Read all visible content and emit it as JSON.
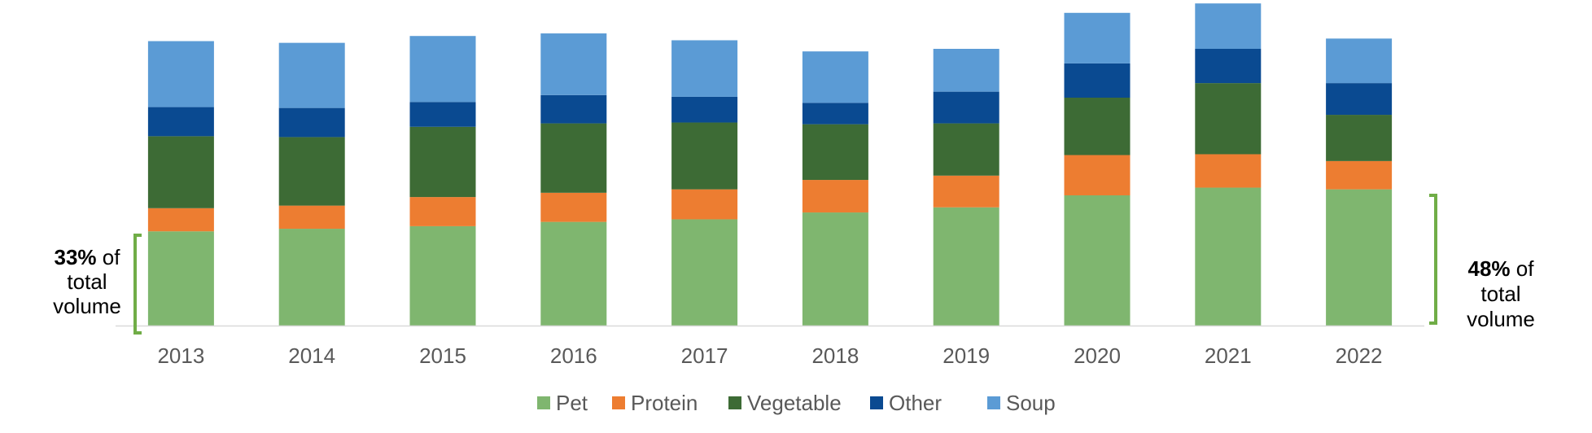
{
  "chart_data": {
    "type": "bar",
    "stacked": true,
    "categories": [
      "2013",
      "2014",
      "2015",
      "2016",
      "2017",
      "2018",
      "2019",
      "2020",
      "2021",
      "2022"
    ],
    "series": [
      {
        "name": "Pet",
        "color": "#7fb66f",
        "values": [
          110,
          113,
          116,
          121,
          124,
          132,
          138,
          152,
          161,
          159
        ]
      },
      {
        "name": "Protein",
        "color": "#ed7d31",
        "values": [
          27,
          27,
          34,
          34,
          35,
          38,
          37,
          47,
          39,
          33
        ]
      },
      {
        "name": "Vegetable",
        "color": "#3d6b35",
        "values": [
          84,
          80,
          82,
          81,
          78,
          65,
          61,
          67,
          83,
          54
        ]
      },
      {
        "name": "Other",
        "color": "#0a4a91",
        "values": [
          34,
          34,
          29,
          33,
          30,
          25,
          37,
          40,
          40,
          37
        ]
      },
      {
        "name": "Soup",
        "color": "#5b9bd5",
        "values": [
          77,
          76,
          77,
          72,
          66,
          60,
          50,
          59,
          53,
          52
        ]
      }
    ],
    "ylim": [
      0,
      380
    ],
    "grid": false,
    "legend_position": "bottom",
    "annotations": {
      "left": {
        "bold": "33%",
        "lines": [
          " of",
          "total",
          "volume"
        ]
      },
      "right": {
        "bold": "48%",
        "lines": [
          " of",
          "total",
          "volume"
        ]
      },
      "bracket_color": "#70ad47"
    }
  }
}
